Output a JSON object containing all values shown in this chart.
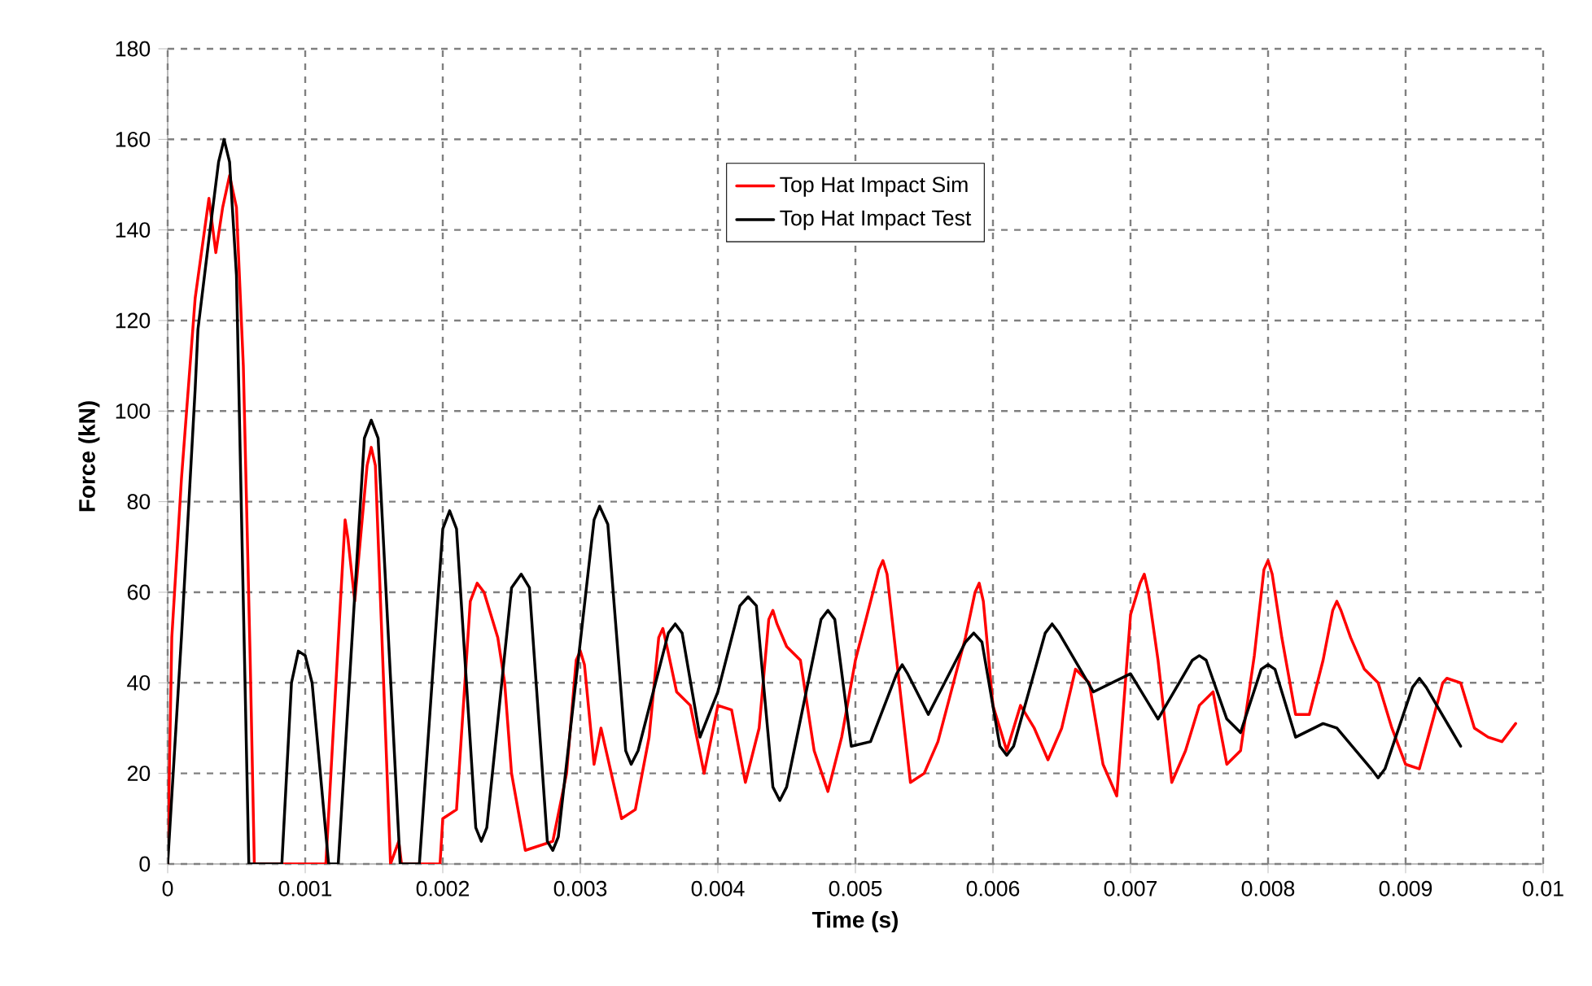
{
  "chart_data": {
    "type": "line",
    "xlabel": "Time (s)",
    "ylabel": "Force (kN)",
    "xlim": [
      0,
      0.01
    ],
    "ylim": [
      0,
      180
    ],
    "xticks": [
      0,
      0.001,
      0.002,
      0.003,
      0.004,
      0.005,
      0.006,
      0.007,
      0.008,
      0.009,
      0.01
    ],
    "yticks": [
      0,
      20,
      40,
      60,
      80,
      100,
      120,
      140,
      160,
      180
    ],
    "grid": true,
    "legend": "top",
    "marker": "none",
    "line_style": "solid",
    "series": [
      {
        "name": "Top Hat Impact Sim",
        "color": "#ff0000",
        "x": [
          0,
          3e-05,
          0.0001,
          0.0002,
          0.0003,
          0.00035,
          0.0004,
          0.00045,
          0.0005,
          0.00055,
          0.0006,
          0.00063,
          0.00115,
          0.00126,
          0.00129,
          0.00131,
          0.00136,
          0.00145,
          0.00148,
          0.00151,
          0.00162,
          0.00168,
          0.0017,
          0.00198,
          0.002,
          0.0021,
          0.0022,
          0.00225,
          0.0023,
          0.0024,
          0.00245,
          0.0025,
          0.0026,
          0.0028,
          0.0029,
          0.00297,
          0.003,
          0.00303,
          0.0031,
          0.00315,
          0.0033,
          0.0034,
          0.0035,
          0.00357,
          0.0036,
          0.00363,
          0.0037,
          0.0038,
          0.0039,
          0.004,
          0.0041,
          0.0042,
          0.0043,
          0.00437,
          0.0044,
          0.00443,
          0.0045,
          0.0046,
          0.0047,
          0.0048,
          0.0049,
          0.005,
          0.00517,
          0.0052,
          0.00523,
          0.0053,
          0.0054,
          0.0055,
          0.0056,
          0.0058,
          0.00587,
          0.0059,
          0.00593,
          0.006,
          0.0061,
          0.0062,
          0.0063,
          0.0064,
          0.0065,
          0.0066,
          0.0067,
          0.0068,
          0.0069,
          0.007,
          0.00707,
          0.0071,
          0.00713,
          0.0072,
          0.0073,
          0.0074,
          0.0075,
          0.0076,
          0.0077,
          0.0078,
          0.0079,
          0.00797,
          0.008,
          0.00803,
          0.0081,
          0.0082,
          0.0083,
          0.0084,
          0.00847,
          0.0085,
          0.00853,
          0.0086,
          0.0087,
          0.0088,
          0.0089,
          0.009,
          0.0091,
          0.0092,
          0.00927,
          0.0093,
          0.0094,
          0.0095,
          0.0096,
          0.0097,
          0.0098
        ],
        "values": [
          0,
          50,
          85,
          125,
          147,
          135,
          145,
          152,
          145,
          110,
          45,
          0,
          0,
          60,
          76,
          72,
          58,
          88,
          92,
          88,
          0,
          5,
          0,
          0,
          10,
          12,
          58,
          62,
          60,
          50,
          40,
          20,
          3,
          5,
          20,
          45,
          47,
          44,
          22,
          30,
          10,
          12,
          28,
          50,
          52,
          48,
          38,
          35,
          20,
          35,
          34,
          18,
          30,
          54,
          56,
          53,
          48,
          45,
          25,
          16,
          28,
          45,
          65,
          67,
          64,
          45,
          18,
          20,
          27,
          50,
          60,
          62,
          58,
          35,
          25,
          35,
          30,
          23,
          30,
          43,
          40,
          22,
          15,
          55,
          62,
          64,
          60,
          45,
          18,
          25,
          35,
          38,
          22,
          25,
          46,
          65,
          67,
          64,
          50,
          33,
          33,
          45,
          56,
          58,
          56,
          50,
          43,
          40,
          30,
          22,
          21,
          32,
          40,
          41,
          40,
          30,
          28,
          27,
          31
        ]
      },
      {
        "name": "Top Hat Impact Test",
        "color": "#000000",
        "x": [
          0,
          0.0001,
          0.0002,
          0.00022,
          0.0003,
          0.00037,
          0.00041,
          0.00045,
          0.0005,
          0.00059,
          0.00083,
          0.0009,
          0.00095,
          0.001,
          0.00105,
          0.00117,
          0.00124,
          0.00143,
          0.00148,
          0.00153,
          0.00169,
          0.00183,
          0.002,
          0.00205,
          0.0021,
          0.00224,
          0.00228,
          0.00232,
          0.0025,
          0.00257,
          0.00263,
          0.00276,
          0.0028,
          0.00284,
          0.0031,
          0.00314,
          0.0032,
          0.00333,
          0.00337,
          0.00342,
          0.00364,
          0.00369,
          0.00374,
          0.00387,
          0.004,
          0.00416,
          0.00422,
          0.00428,
          0.0044,
          0.00445,
          0.0045,
          0.00475,
          0.0048,
          0.00485,
          0.00497,
          0.00511,
          0.0053,
          0.00534,
          0.00538,
          0.00553,
          0.0058,
          0.00586,
          0.00592,
          0.00605,
          0.0061,
          0.00615,
          0.00638,
          0.00643,
          0.00648,
          0.00673,
          0.007,
          0.0072,
          0.00745,
          0.0075,
          0.00755,
          0.0077,
          0.0078,
          0.00795,
          0.008,
          0.00805,
          0.0082,
          0.0084,
          0.0085,
          0.00875,
          0.0088,
          0.00885,
          0.00905,
          0.0091,
          0.00915,
          0.0094
        ],
        "values": [
          0,
          50,
          105,
          118,
          138,
          155,
          160,
          155,
          130,
          0,
          0,
          40,
          47,
          46,
          40,
          0,
          0,
          94,
          98,
          94,
          0,
          0,
          74,
          78,
          74,
          8,
          5,
          8,
          61,
          64,
          61,
          5,
          3,
          6,
          76,
          79,
          75,
          25,
          22,
          25,
          51,
          53,
          51,
          28,
          38,
          57,
          59,
          57,
          17,
          14,
          17,
          54,
          56,
          54,
          26,
          27,
          42,
          44,
          42,
          33,
          49,
          51,
          49,
          26,
          24,
          26,
          51,
          53,
          51,
          38,
          42,
          32,
          45,
          46,
          45,
          32,
          29,
          43,
          44,
          43,
          28,
          31,
          30,
          21,
          19,
          21,
          39,
          41,
          39,
          26
        ]
      }
    ]
  }
}
